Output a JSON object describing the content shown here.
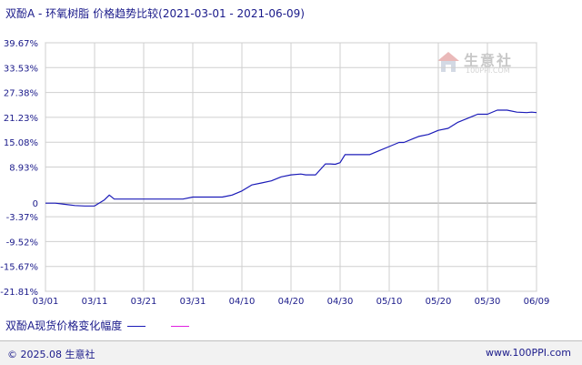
{
  "title": {
    "series_names": "双酚A - 环氧树脂",
    "subtitle": "价格趋势比较(2021-03-01 - 2021-06-09)"
  },
  "watermark": {
    "cn": "生意社",
    "en": "100PPI.COM"
  },
  "footer": {
    "left": "© 2025.08 生意社",
    "right": "www.100PPI.com"
  },
  "colors": {
    "series1": "#1b1bb8",
    "series2": "#e020e0",
    "grid": "#cfcfcf",
    "zero_line": "#999999",
    "axis_text": "#1a1a8a"
  },
  "chart_data": {
    "type": "line",
    "title": "双酚A - 环氧树脂 价格趋势比较(2021-03-01 - 2021-06-09)",
    "xlabel": "",
    "ylabel": "",
    "x_tick_labels": [
      "03/01",
      "03/11",
      "03/21",
      "03/31",
      "04/10",
      "04/20",
      "04/30",
      "05/10",
      "05/20",
      "05/30",
      "06/09"
    ],
    "y_tick_labels": [
      "39.67%",
      "33.53%",
      "27.38%",
      "21.23%",
      "15.08%",
      "8.93%",
      "0",
      "-3.37%",
      "-9.52%",
      "-15.67%",
      "-21.81%"
    ],
    "y_tick_values": [
      39.67,
      33.53,
      27.38,
      21.23,
      15.08,
      8.93,
      0,
      -3.37,
      -9.52,
      -15.67,
      -21.81
    ],
    "ylim": [
      -21.81,
      39.67
    ],
    "x_unit": "day offset from 03/01",
    "xlim": [
      0,
      100
    ],
    "grid": true,
    "legend_position": "bottom",
    "series": [
      {
        "name": "双酚A现货价格变化幅度",
        "color": "#1b1bb8",
        "points": [
          [
            0,
            0
          ],
          [
            2,
            0
          ],
          [
            4,
            -0.3
          ],
          [
            6,
            -0.6
          ],
          [
            8,
            -0.7
          ],
          [
            10,
            -0.7
          ],
          [
            12,
            0.8
          ],
          [
            13,
            2
          ],
          [
            14,
            1
          ],
          [
            16,
            1
          ],
          [
            20,
            1
          ],
          [
            24,
            1
          ],
          [
            26,
            1
          ],
          [
            28,
            1
          ],
          [
            30,
            1.5
          ],
          [
            33,
            1.5
          ],
          [
            36,
            1.5
          ],
          [
            38,
            2
          ],
          [
            40,
            3
          ],
          [
            42,
            4.5
          ],
          [
            44,
            5
          ],
          [
            46,
            5.5
          ],
          [
            48,
            6.5
          ],
          [
            50,
            7
          ],
          [
            52,
            7.2
          ],
          [
            53,
            7
          ],
          [
            55,
            7
          ],
          [
            57,
            9.7
          ],
          [
            58,
            9.7
          ],
          [
            59,
            9.6
          ],
          [
            60,
            10
          ],
          [
            61,
            12
          ],
          [
            62,
            12
          ],
          [
            64,
            12
          ],
          [
            66,
            12
          ],
          [
            68,
            13
          ],
          [
            70,
            14
          ],
          [
            72,
            15
          ],
          [
            73,
            15
          ],
          [
            75,
            16
          ],
          [
            76,
            16.5
          ],
          [
            78,
            17
          ],
          [
            80,
            18
          ],
          [
            82,
            18.5
          ],
          [
            84,
            20
          ],
          [
            86,
            21
          ],
          [
            88,
            22
          ],
          [
            90,
            22
          ],
          [
            92,
            23
          ],
          [
            94,
            23
          ],
          [
            96,
            22.5
          ],
          [
            98,
            22.4
          ],
          [
            99,
            22.5
          ],
          [
            100,
            22.4
          ]
        ]
      }
    ]
  }
}
